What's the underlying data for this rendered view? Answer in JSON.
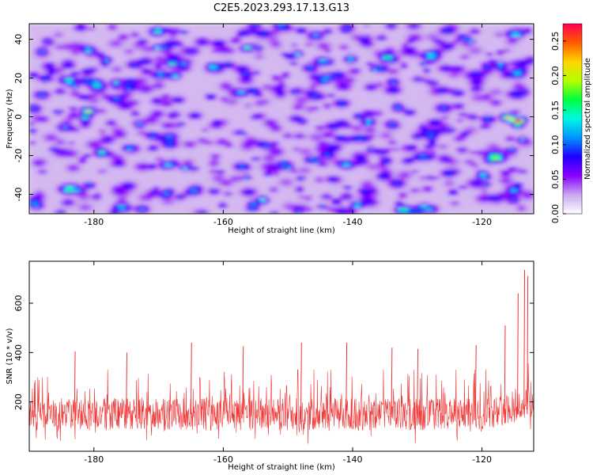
{
  "title": "C2E5.2023.293.17.13.G13",
  "chart_data": [
    {
      "type": "heatmap",
      "xlabel": "Height of straight line (km)",
      "ylabel": "Frequency (Hz)",
      "xlim": [
        -190,
        -112
      ],
      "ylim": [
        -50,
        48
      ],
      "x_ticks": [
        {
          "value": -180,
          "label": "-180"
        },
        {
          "value": -160,
          "label": "-160"
        },
        {
          "value": -140,
          "label": "-140"
        },
        {
          "value": -120,
          "label": "-120"
        }
      ],
      "y_ticks": [
        {
          "value": 40,
          "label": "40"
        },
        {
          "value": 20,
          "label": "20"
        },
        {
          "value": 0,
          "label": "0"
        },
        {
          "value": -20,
          "label": "-20"
        },
        {
          "value": -40,
          "label": "-40"
        }
      ],
      "colorbar": {
        "label": "Normalized spectral amplitude",
        "range": [
          0,
          0.275
        ],
        "ticks": [
          {
            "value": 0.0,
            "label": "0.00"
          },
          {
            "value": 0.05,
            "label": "0.05"
          },
          {
            "value": 0.1,
            "label": "0.10"
          },
          {
            "value": 0.15,
            "label": "0.15"
          },
          {
            "value": 0.2,
            "label": "0.20"
          },
          {
            "value": 0.25,
            "label": "0.25"
          }
        ],
        "colormap": [
          "#ffffff",
          "#c9a7ee",
          "#8a00ff",
          "#1f00ff",
          "#0094ff",
          "#00f7e3",
          "#00ff40",
          "#b5ff00",
          "#ffd500",
          "#ff5a00",
          "#ff0050"
        ]
      },
      "hotspots": [
        {
          "x": -114.5,
          "y": -2,
          "value": 0.26
        },
        {
          "x": -116,
          "y": 0,
          "value": 0.24
        },
        {
          "x": -119,
          "y": -1,
          "value": 0.13
        },
        {
          "x": -145,
          "y": 29,
          "value": 0.12
        },
        {
          "x": -172,
          "y": 29,
          "value": 0.11
        },
        {
          "x": -167,
          "y": 9,
          "value": 0.1
        },
        {
          "x": -184,
          "y": -44,
          "value": 0.09
        },
        {
          "x": -138,
          "y": -38,
          "value": 0.09
        }
      ],
      "background_level": 0.04
    },
    {
      "type": "line",
      "xlabel": "Height of straight line (km)",
      "ylabel": "SNR (10 * v/v)",
      "xlim": [
        -190,
        -112
      ],
      "ylim": [
        0,
        770
      ],
      "x_ticks": [
        {
          "value": -180,
          "label": "-180"
        },
        {
          "value": -160,
          "label": "-160"
        },
        {
          "value": -140,
          "label": "-140"
        },
        {
          "value": -120,
          "label": "-120"
        }
      ],
      "y_ticks": [
        {
          "value": 200,
          "label": "200"
        },
        {
          "value": 400,
          "label": "400"
        },
        {
          "value": 600,
          "label": "600"
        }
      ],
      "series": [
        {
          "color": "#f03232",
          "baseline": 150,
          "typical_range": [
            60,
            330
          ],
          "peaks": [
            {
              "x": -113.5,
              "y": 735
            },
            {
              "x": -113,
              "y": 710
            },
            {
              "x": -114.5,
              "y": 640
            },
            {
              "x": -116.5,
              "y": 510
            },
            {
              "x": -121,
              "y": 430
            },
            {
              "x": -130,
              "y": 415
            },
            {
              "x": -134,
              "y": 420
            },
            {
              "x": -141,
              "y": 440
            },
            {
              "x": -148,
              "y": 440
            },
            {
              "x": -157,
              "y": 425
            },
            {
              "x": -165,
              "y": 440
            },
            {
              "x": -175,
              "y": 400
            },
            {
              "x": -183,
              "y": 405
            }
          ]
        }
      ]
    }
  ]
}
